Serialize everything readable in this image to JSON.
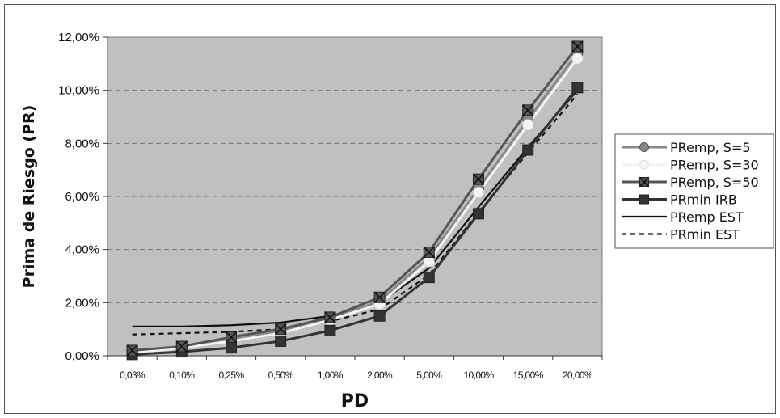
{
  "chart_data": {
    "type": "line",
    "title": "",
    "xlabel": "PD",
    "ylabel": "Prima de Riesgo (PR)",
    "categories": [
      "0,03%",
      "0,10%",
      "0,25%",
      "0,50%",
      "1,00%",
      "2,00%",
      "5,00%",
      "10,00%",
      "15,00%",
      "20,00%"
    ],
    "ylim": [
      0,
      12
    ],
    "yticks": [
      "0,00%",
      "2,00%",
      "4,00%",
      "6,00%",
      "8,00%",
      "10,00%",
      "12,00%"
    ],
    "grid": "horizontal dashed",
    "legend_position": "right",
    "plot_background": "#c0c0c0",
    "series": [
      {
        "name": "PRemp, S=5",
        "values": [
          0.15,
          0.35,
          0.6,
          0.9,
          1.4,
          2.05,
          3.7,
          6.3,
          8.9,
          11.4
        ],
        "color": "#888888",
        "marker": "circle",
        "dash": "solid"
      },
      {
        "name": "PRemp, S=30",
        "values": [
          0.1,
          0.3,
          0.55,
          0.85,
          1.35,
          1.95,
          3.55,
          6.15,
          8.7,
          11.2
        ],
        "color": "#f4f4f4",
        "marker": "circle",
        "dash": "solid"
      },
      {
        "name": "PRemp, S=50",
        "values": [
          0.2,
          0.35,
          0.7,
          1.0,
          1.45,
          2.2,
          3.9,
          6.65,
          9.25,
          11.65
        ],
        "color": "#555555",
        "marker": "x-square",
        "dash": "solid"
      },
      {
        "name": "PRmin IRB",
        "values": [
          0.05,
          0.15,
          0.3,
          0.55,
          0.95,
          1.5,
          2.95,
          5.35,
          7.75,
          10.1
        ],
        "color": "#333333",
        "marker": "square",
        "dash": "solid"
      },
      {
        "name": "PRemp EST",
        "values": [
          1.1,
          1.1,
          1.15,
          1.25,
          1.5,
          2.0,
          3.3,
          5.6,
          7.85,
          10.0
        ],
        "color": "#111111",
        "marker": "none",
        "dash": "solid"
      },
      {
        "name": "PRmin EST",
        "values": [
          0.8,
          0.85,
          0.9,
          1.0,
          1.3,
          1.75,
          3.05,
          5.4,
          7.65,
          9.85
        ],
        "color": "#111111",
        "marker": "none",
        "dash": "dashed"
      }
    ]
  }
}
